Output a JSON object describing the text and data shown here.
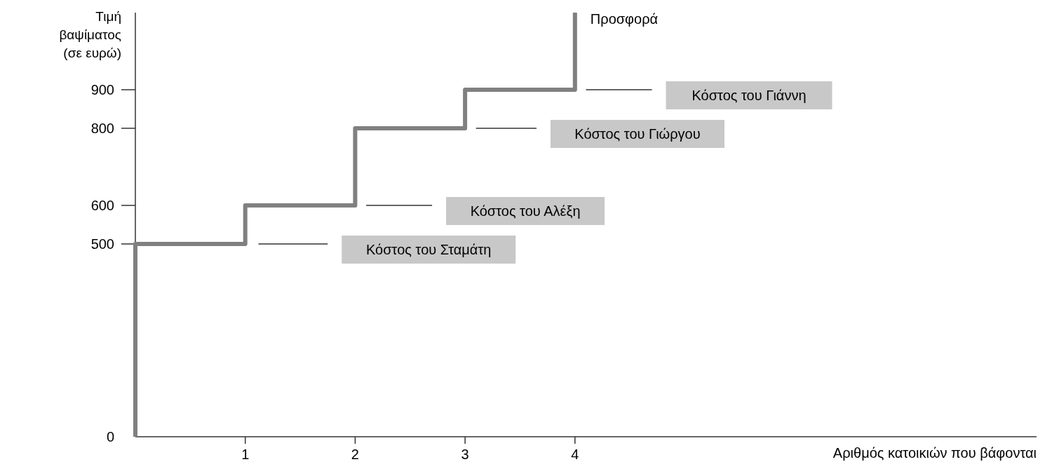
{
  "chart_data": {
    "type": "line",
    "ylabel": "Τιμή βαψίματος (σε ευρώ)",
    "xlabel": "Αριθμός κατοικιών που βάφονται",
    "xlim": [
      0,
      8.2
    ],
    "xticks": [
      1,
      2,
      3,
      4
    ],
    "ylim": [
      0,
      1100
    ],
    "yticks": [
      0,
      500,
      600,
      800,
      900
    ],
    "grid": false,
    "legend": false,
    "marker": "none",
    "line_style": "solid",
    "series": [
      {
        "name": "Προσφορά",
        "color": "#808080",
        "x": [
          0,
          0,
          1,
          1,
          2,
          2,
          3,
          3,
          4,
          4
        ],
        "values": [
          0,
          500,
          500,
          600,
          600,
          800,
          800,
          900,
          900,
          1100
        ]
      },
      {
        "name": "Κόστος του Σταμάτη",
        "color": "#333333",
        "x": [
          1.12,
          1.75
        ],
        "values": [
          500,
          500
        ]
      },
      {
        "name": "Κόστος του Αλέξη",
        "color": "#333333",
        "x": [
          2.1,
          2.7
        ],
        "values": [
          600,
          600
        ]
      },
      {
        "name": "Κόστος του Γιώργου",
        "color": "#333333",
        "x": [
          3.1,
          3.65
        ],
        "values": [
          800,
          800
        ]
      },
      {
        "name": "Κόστος του Γιάννη",
        "color": "#333333",
        "x": [
          4.1,
          4.7
        ],
        "values": [
          900,
          900
        ]
      }
    ]
  }
}
